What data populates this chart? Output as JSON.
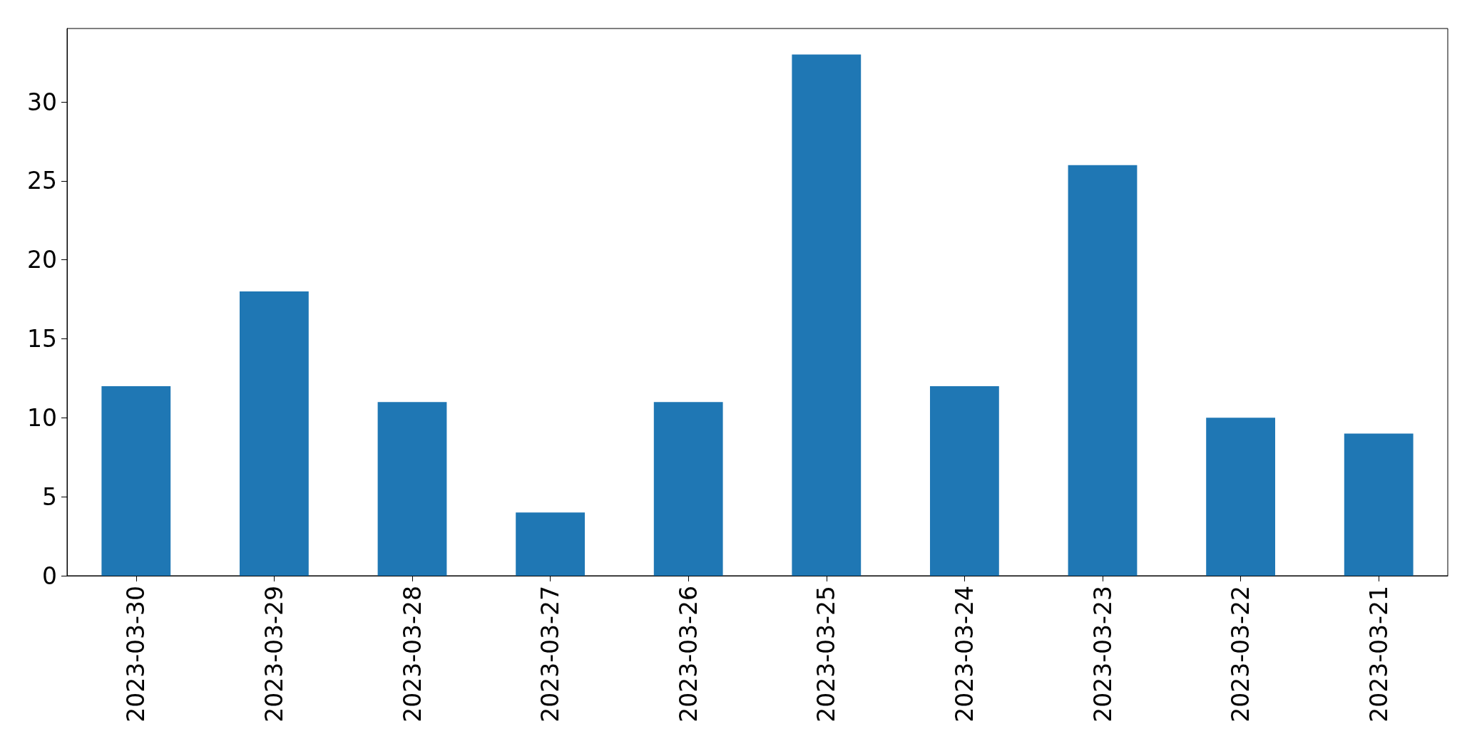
{
  "chart_data": {
    "type": "bar",
    "categories": [
      "2023-03-30",
      "2023-03-29",
      "2023-03-28",
      "2023-03-27",
      "2023-03-26",
      "2023-03-25",
      "2023-03-24",
      "2023-03-23",
      "2023-03-22",
      "2023-03-21"
    ],
    "values": [
      12,
      18,
      11,
      4,
      11,
      33,
      12,
      26,
      10,
      9
    ],
    "color": "#1f77b4",
    "ylim": [
      0,
      34.65
    ],
    "yticks": [
      0,
      5,
      10,
      15,
      20,
      25,
      30
    ],
    "grid": false
  }
}
